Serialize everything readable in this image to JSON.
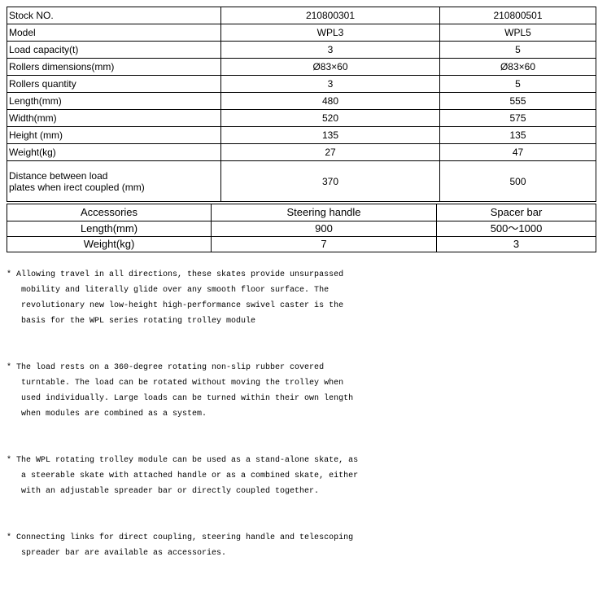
{
  "spec_table": {
    "columns": [
      "Stock NO.",
      "210800301",
      "210800501"
    ],
    "rows": [
      [
        "Model",
        "WPL3",
        "WPL5"
      ],
      [
        "Load capacity(t)",
        "3",
        "5"
      ],
      [
        "Rollers dimensions(mm)",
        "Ø83×60",
        "Ø83×60"
      ],
      [
        "Rollers quantity",
        "3",
        "5"
      ],
      [
        "Length(mm)",
        "480",
        "555"
      ],
      [
        "Width(mm)",
        "520",
        "575"
      ],
      [
        "Height (mm)",
        "135",
        "135"
      ],
      [
        "Weight(kg)",
        "27",
        "47"
      ],
      [
        "Distance between load\nplates when irect coupled (mm)",
        "370",
        "500"
      ]
    ]
  },
  "accessories_table": {
    "columns": [
      "Accessories",
      "Steering handle",
      "Spacer bar"
    ],
    "rows": [
      [
        "Length(mm)",
        "900",
        "500～1000"
      ],
      [
        "Weight(kg)",
        "7",
        "3"
      ]
    ]
  },
  "notes": [
    "* Allowing travel in all directions, these skates provide unsurpassed\n   mobility and literally glide over any smooth floor surface. The\n   revolutionary new low-height high-performance swivel caster is the\n   basis for the WPL series rotating trolley module",
    "* The load rests on a 360-degree rotating non-slip rubber covered\n   turntable. The load can be rotated without moving the trolley when\n   used individually. Large loads can be turned within their own length\n   when modules are combined as a system.",
    "* The WPL rotating trolley module can be used as a stand-alone skate, as\n   a steerable skate with attached handle or as a combined skate, either\n   with an adjustable spreader bar or directly coupled together.",
    "* Connecting links for direct coupling, steering handle and telescoping\n   spreader bar are available as accessories."
  ]
}
